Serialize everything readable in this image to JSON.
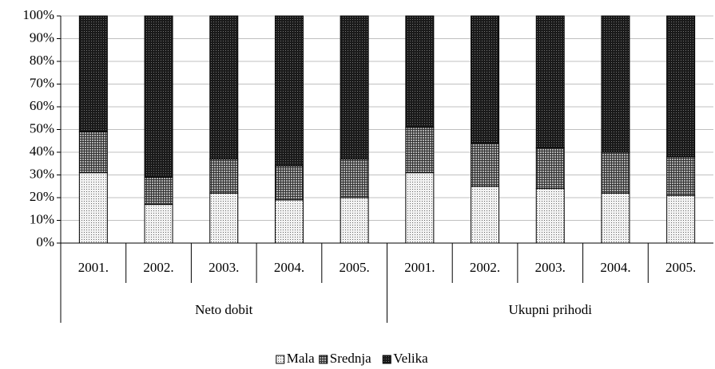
{
  "chart_data": {
    "type": "stacked_bar",
    "groups": [
      {
        "name": "Neto dobit",
        "categories": [
          "2001.",
          "2002.",
          "2003.",
          "2004.",
          "2005."
        ]
      },
      {
        "name": "Ukupni prihodi",
        "categories": [
          "2001.",
          "2002.",
          "2003.",
          "2004.",
          "2005."
        ]
      }
    ],
    "series": [
      {
        "name": "Mala",
        "color": "#f2f2f2",
        "values": [
          31,
          17,
          22,
          19,
          20,
          31,
          25,
          24,
          22,
          21
        ]
      },
      {
        "name": "Srednja",
        "color": "#b0b0b0",
        "values": [
          18,
          12,
          15,
          15,
          17,
          20,
          19,
          18,
          18,
          17
        ]
      },
      {
        "name": "Velika",
        "color": "#1a1a1a",
        "values": [
          51,
          71,
          63,
          66,
          63,
          49,
          56,
          58,
          60,
          62
        ]
      }
    ],
    "ylim": [
      0,
      100
    ],
    "yticks": [
      {
        "value": 0,
        "label": "0%"
      },
      {
        "value": 10,
        "label": "10%"
      },
      {
        "value": 20,
        "label": "20%"
      },
      {
        "value": 30,
        "label": "30%"
      },
      {
        "value": 40,
        "label": "40%"
      },
      {
        "value": 50,
        "label": "50%"
      },
      {
        "value": 60,
        "label": "60%"
      },
      {
        "value": 70,
        "label": "70%"
      },
      {
        "value": 80,
        "label": "80%"
      },
      {
        "value": 90,
        "label": "90%"
      },
      {
        "value": 100,
        "label": "100%"
      }
    ],
    "grid": true,
    "legend": "bottom"
  }
}
